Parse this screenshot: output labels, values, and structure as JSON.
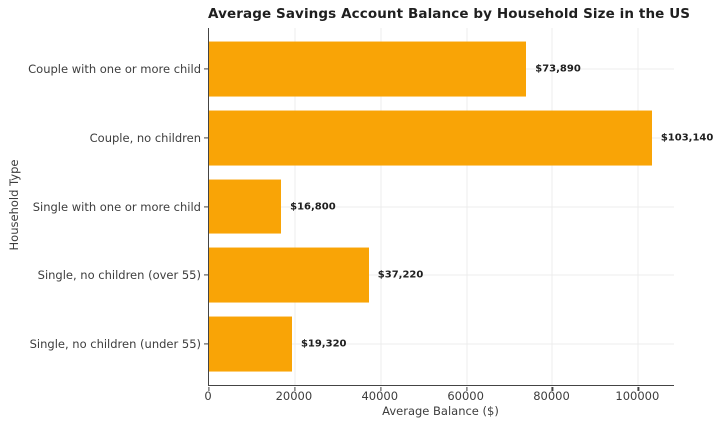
{
  "chart_data": {
    "type": "bar",
    "orientation": "horizontal",
    "title": "Average Savings Account Balance by Household Size in the US",
    "xlabel": "Average Balance ($)",
    "ylabel": "Household Type",
    "categories": [
      "Couple with one or more child",
      "Couple, no children",
      "Single with one or more child",
      "Single, no children (over 55)",
      "Single, no children (under 55)"
    ],
    "values": [
      73890,
      103140,
      16800,
      37220,
      19320
    ],
    "value_labels": [
      "$73,890",
      "$103,140",
      "$16,800",
      "$37,220",
      "$19,320"
    ],
    "x_ticks": [
      0,
      20000,
      40000,
      60000,
      80000,
      100000
    ],
    "x_tick_labels": [
      "0",
      "20000",
      "40000",
      "60000",
      "80000",
      "100000"
    ],
    "xlim": [
      0,
      108300
    ],
    "grid": true,
    "legend_position": "none",
    "bar_color": "#f9a406",
    "grid_color": "#ececec",
    "axis_color": "#444444",
    "title_color": "#1f1f1f",
    "tick_text_color": "#3d3d3d"
  }
}
